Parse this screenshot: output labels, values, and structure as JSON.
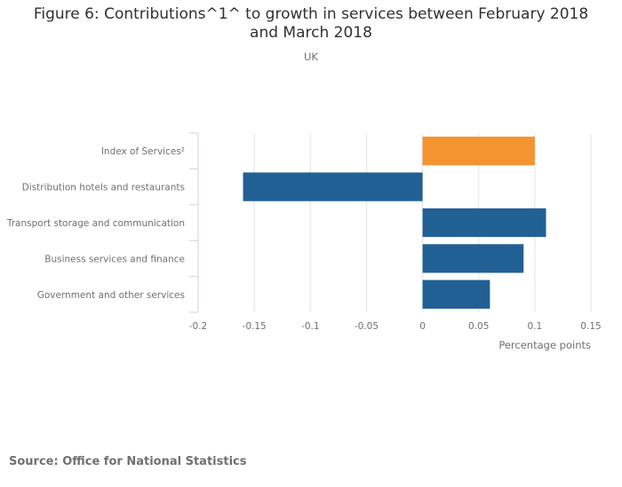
{
  "chart_data": {
    "type": "bar",
    "orientation": "horizontal",
    "title": "Figure 6: Contributions^1^ to growth in services between February 2018 and March 2018",
    "title_lines": [
      "Figure 6: Contributions^1^ to growth in services between February 2018",
      "and March 2018"
    ],
    "subtitle": "UK",
    "categories": [
      "Index of Services²",
      "Distribution hotels and restaurants",
      "Transport storage and communication",
      "Business services and finance",
      "Government and other services"
    ],
    "values": [
      0.1,
      -0.16,
      0.11,
      0.09,
      0.06
    ],
    "colors": [
      "#f39431",
      "#206095",
      "#206095",
      "#206095",
      "#206095"
    ],
    "xlabel": "Percentage points",
    "ylabel": "",
    "xlim": [
      -0.2,
      0.15
    ],
    "xticks": [
      -0.2,
      -0.15,
      -0.1,
      -0.05,
      0,
      0.05,
      0.1,
      0.15
    ],
    "xtick_labels": [
      "-0.2",
      "-0.15",
      "-0.1",
      "-0.05",
      "0",
      "0.05",
      "0.1",
      "0.15"
    ],
    "grid": true,
    "legend": "none"
  },
  "source": "Source: Office for National Statistics"
}
